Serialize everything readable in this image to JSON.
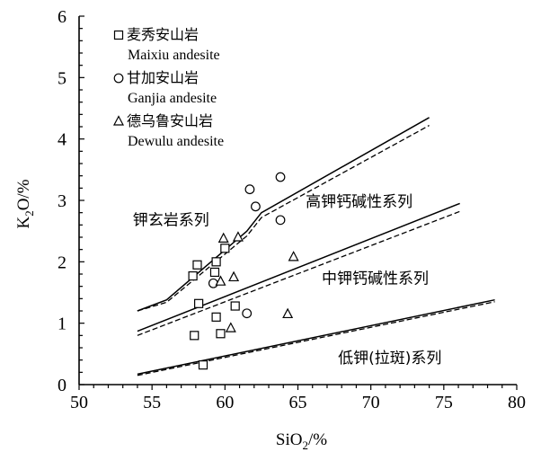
{
  "chart_data": {
    "type": "scatter",
    "xlabel_main": "SiO",
    "xlabel_sub": "2",
    "xlabel_tail": "/%",
    "ylabel_main": "K",
    "ylabel_sub": "2",
    "ylabel_tail": "O/%",
    "xlim": [
      50,
      80
    ],
    "ylim": [
      0,
      6
    ],
    "x_ticks": [
      "50",
      "55",
      "60",
      "65",
      "70",
      "75",
      "80"
    ],
    "y_ticks": [
      "0",
      "1",
      "2",
      "3",
      "4",
      "5",
      "6"
    ],
    "series": [
      {
        "name": "麦秀安山岩",
        "name_en": "Maixiu andesite",
        "marker": "square",
        "points": [
          [
            58.1,
            1.95
          ],
          [
            57.8,
            1.77
          ],
          [
            59.4,
            2.0
          ],
          [
            60.0,
            2.22
          ],
          [
            59.3,
            1.83
          ],
          [
            58.2,
            1.32
          ],
          [
            60.7,
            1.28
          ],
          [
            59.4,
            1.1
          ],
          [
            57.9,
            0.8
          ],
          [
            59.7,
            0.83
          ],
          [
            58.5,
            0.32
          ]
        ]
      },
      {
        "name": "甘加安山岩",
        "name_en": "Ganjia andesite",
        "marker": "circle",
        "points": [
          [
            63.8,
            3.38
          ],
          [
            61.7,
            3.18
          ],
          [
            62.1,
            2.9
          ],
          [
            63.8,
            2.68
          ],
          [
            59.2,
            1.65
          ],
          [
            61.5,
            1.16
          ]
        ]
      },
      {
        "name": "德乌鲁安山岩",
        "name_en": "Dewulu andesite",
        "marker": "triangle",
        "points": [
          [
            59.9,
            2.38
          ],
          [
            60.9,
            2.4
          ],
          [
            64.7,
            2.08
          ],
          [
            60.6,
            1.75
          ],
          [
            59.7,
            1.68
          ],
          [
            64.3,
            1.15
          ],
          [
            60.4,
            0.92
          ]
        ]
      }
    ],
    "boundaries": {
      "solid": [
        [
          [
            54,
            1.2
          ],
          [
            56,
            1.38
          ],
          [
            61.5,
            2.5
          ],
          [
            62.5,
            2.8
          ],
          [
            74,
            4.35
          ]
        ],
        [
          [
            54,
            0.87
          ],
          [
            76.1,
            2.95
          ]
        ],
        [
          [
            54,
            0.17
          ],
          [
            78.5,
            1.38
          ]
        ]
      ],
      "dashed": [
        [
          [
            54,
            1.2
          ],
          [
            56,
            1.34
          ],
          [
            61.5,
            2.42
          ],
          [
            62.5,
            2.72
          ],
          [
            74,
            4.22
          ]
        ],
        [
          [
            54,
            0.8
          ],
          [
            76.1,
            2.82
          ]
        ],
        [
          [
            54,
            0.15
          ],
          [
            78.5,
            1.35
          ]
        ]
      ]
    },
    "region_labels": [
      {
        "text": "钾玄岩系列",
        "x": 56.3,
        "y": 2.6
      },
      {
        "text": "高钾钙碱性系列",
        "x": 69.2,
        "y": 2.9
      },
      {
        "text": "中钾钙碱性系列",
        "x": 70.3,
        "y": 1.65
      },
      {
        "text": "低钾(拉斑)系列",
        "x": 71.3,
        "y": 0.35
      }
    ]
  }
}
